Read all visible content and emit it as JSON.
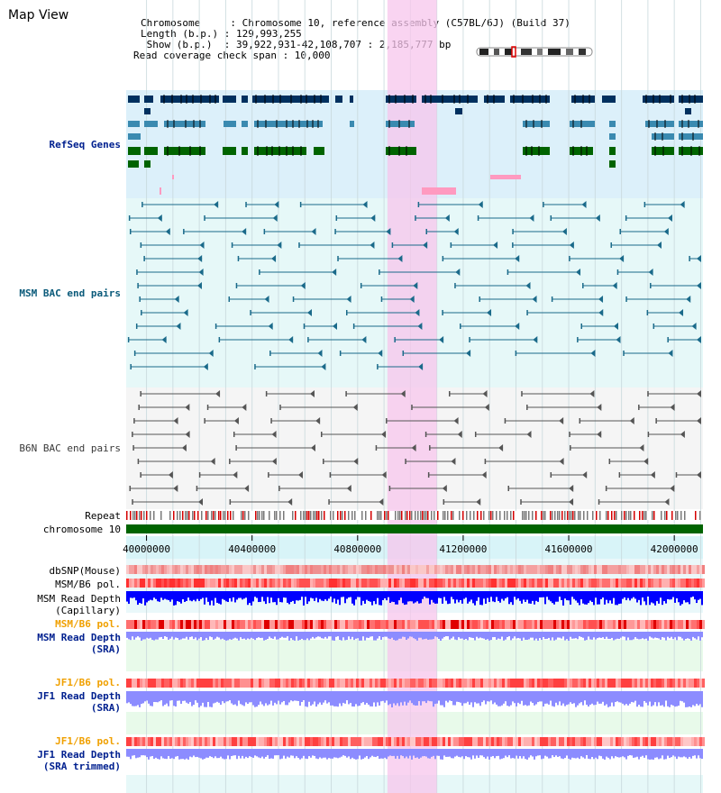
{
  "header": {
    "title": "Map View",
    "info_lines": [
      "Chromosome     : Chromosome 10, reference assembly (C57BL/6J) (Build 37)",
      "Length (b.p.) : 129,993,255",
      " Show (b.p.)  : 39,922,931-42,108,707 : 2,185,777 bp",
      "Read coverage check span : 10,000"
    ]
  },
  "tracks": {
    "refseq": "RefSeq Genes",
    "msm_bac": "MSM BAC end pairs",
    "b6n_bac": "B6N BAC end pairs",
    "repeat": "Repeat",
    "chromosome": "chromosome 10",
    "dbsnp": "dbSNP(Mouse)",
    "msm_b6_pol": "MSM/B6 pol.",
    "msm_depth_cap": [
      "MSM Read Depth",
      "(Capillary)"
    ],
    "msm_b6_pol_sra": "MSM/B6 pol.",
    "msm_depth_sra": [
      "MSM Read Depth",
      "(SRA)"
    ],
    "jf1_b6_pol": "JF1/B6 pol.",
    "jf1_depth_sra": [
      "JF1 Read Depth",
      "(SRA)"
    ],
    "jf1_b6_pol_trim": "JF1/B6 pol.",
    "jf1_depth_trim": [
      "JF1 Read Depth",
      "(SRA trimmed)"
    ]
  },
  "axis": {
    "ticks": [
      "40000000",
      "40400000",
      "40800000",
      "41200000",
      "41600000",
      "42000000"
    ],
    "tick_values": [
      40000000,
      40400000,
      40800000,
      41200000,
      41600000,
      42000000
    ],
    "start": 39922931,
    "end": 42108707
  },
  "highlight": {
    "start": 40913000,
    "end": 41100000
  },
  "colors": {
    "refseq_dark": "#00305f",
    "refseq_mid": "#3a8ab0",
    "refseq_green": "#006400",
    "refseq_pink": "#ff9ac0",
    "msm_line": "#1a6a8a",
    "b6n_line": "#555555",
    "chromosome": "#006400",
    "highlight": "#f7c6ec",
    "panel_refseq": "#dcf0fa",
    "panel_msm": "#e6f8f8",
    "panel_b6n": "#f5f5f5",
    "depth_blue": "#0000ff",
    "depth_light": "#8c8cff",
    "pol_red": "#ff3030"
  }
}
